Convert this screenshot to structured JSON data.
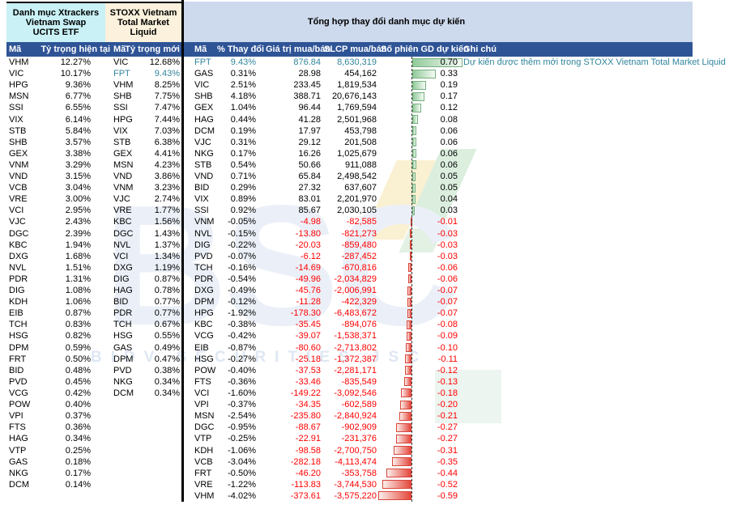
{
  "colors": {
    "header_blue": "#2F5496",
    "etf_header_bg": "#C9F1F6",
    "stoxx_header_bg": "#FBF1DC",
    "changes_header_bg": "#CDD9EC",
    "accent_teal": "#31859C",
    "negative_red": "#FF0000",
    "bar_green": "#92CB9A",
    "bar_red": "#E4473C"
  },
  "watermark": {
    "logo": "BSC",
    "subtext": "BIDV SECURITIES JSC"
  },
  "etf": {
    "title": "Danh mục Xtrackers Vietnam Swap UCITS ETF",
    "columns": {
      "code": "Mã",
      "weight": "Tỷ trọng hiện tại"
    },
    "rows": [
      [
        "VHM",
        "12.27%"
      ],
      [
        "VIC",
        "10.17%"
      ],
      [
        "HPG",
        "9.36%"
      ],
      [
        "MSN",
        "6.77%"
      ],
      [
        "SSI",
        "6.55%"
      ],
      [
        "VIX",
        "6.14%"
      ],
      [
        "STB",
        "5.84%"
      ],
      [
        "SHB",
        "3.57%"
      ],
      [
        "GEX",
        "3.38%"
      ],
      [
        "VNM",
        "3.29%"
      ],
      [
        "VND",
        "3.15%"
      ],
      [
        "VCB",
        "3.04%"
      ],
      [
        "VRE",
        "3.00%"
      ],
      [
        "VCI",
        "2.95%"
      ],
      [
        "VJC",
        "2.43%"
      ],
      [
        "DGC",
        "2.39%"
      ],
      [
        "KBC",
        "1.94%"
      ],
      [
        "DXG",
        "1.68%"
      ],
      [
        "NVL",
        "1.51%"
      ],
      [
        "PDR",
        "1.31%"
      ],
      [
        "DIG",
        "1.08%"
      ],
      [
        "KDH",
        "1.06%"
      ],
      [
        "EIB",
        "0.87%"
      ],
      [
        "TCH",
        "0.83%"
      ],
      [
        "HSG",
        "0.82%"
      ],
      [
        "DPM",
        "0.59%"
      ],
      [
        "FRT",
        "0.50%"
      ],
      [
        "BID",
        "0.48%"
      ],
      [
        "PVD",
        "0.45%"
      ],
      [
        "VCG",
        "0.42%"
      ],
      [
        "POW",
        "0.40%"
      ],
      [
        "VPI",
        "0.37%"
      ],
      [
        "FTS",
        "0.36%"
      ],
      [
        "HAG",
        "0.34%"
      ],
      [
        "VTP",
        "0.25%"
      ],
      [
        "GAS",
        "0.18%"
      ],
      [
        "NKG",
        "0.17%"
      ],
      [
        "DCM",
        "0.14%"
      ]
    ]
  },
  "stoxx": {
    "title": "STOXX Vietnam Total Market Liquid",
    "columns": {
      "code": "Mã",
      "weight": "Tỷ trọng mới"
    },
    "highlight_code": "FPT",
    "rows": [
      [
        "VIC",
        "12.68%"
      ],
      [
        "FPT",
        "9.43%"
      ],
      [
        "VHM",
        "8.25%"
      ],
      [
        "SHB",
        "7.75%"
      ],
      [
        "SSI",
        "7.47%"
      ],
      [
        "HPG",
        "7.44%"
      ],
      [
        "VIX",
        "7.03%"
      ],
      [
        "STB",
        "6.38%"
      ],
      [
        "GEX",
        "4.41%"
      ],
      [
        "MSN",
        "4.23%"
      ],
      [
        "VND",
        "3.86%"
      ],
      [
        "VNM",
        "3.23%"
      ],
      [
        "VJC",
        "2.74%"
      ],
      [
        "VRE",
        "1.77%"
      ],
      [
        "KBC",
        "1.56%"
      ],
      [
        "DGC",
        "1.43%"
      ],
      [
        "NVL",
        "1.37%"
      ],
      [
        "VCI",
        "1.34%"
      ],
      [
        "DXG",
        "1.19%"
      ],
      [
        "DIG",
        "0.87%"
      ],
      [
        "HAG",
        "0.78%"
      ],
      [
        "BID",
        "0.77%"
      ],
      [
        "PDR",
        "0.77%"
      ],
      [
        "TCH",
        "0.67%"
      ],
      [
        "HSG",
        "0.55%"
      ],
      [
        "GAS",
        "0.49%"
      ],
      [
        "DPM",
        "0.47%"
      ],
      [
        "PVD",
        "0.38%"
      ],
      [
        "NKG",
        "0.34%"
      ],
      [
        "DCM",
        "0.34%"
      ]
    ]
  },
  "changes": {
    "title": "Tổng hợp thay đổi danh mục dự kiến",
    "columns": {
      "code": "Mã",
      "pct": "% Thay đổi",
      "value": "Giá trị mua/bán",
      "shares": "SLCP mua/bán",
      "sessions": "Số phiên GD dự kiến",
      "note": "Ghi chú"
    },
    "bar_max_positive": 0.7,
    "bar_max_negative": 0.59,
    "rows": [
      {
        "code": "FPT",
        "pct": "9.43%",
        "value": "876.84",
        "shares": "8,630,319",
        "sessions": "0.70",
        "highlight": true,
        "note": "Dự kiến được thêm mới trong STOXX Vietnam Total Market Liquid"
      },
      {
        "code": "GAS",
        "pct": "0.31%",
        "value": "28.98",
        "shares": "454,162",
        "sessions": "0.33"
      },
      {
        "code": "VIC",
        "pct": "2.51%",
        "value": "233.45",
        "shares": "1,819,534",
        "sessions": "0.19"
      },
      {
        "code": "SHB",
        "pct": "4.18%",
        "value": "388.71",
        "shares": "20,676,143",
        "sessions": "0.17"
      },
      {
        "code": "GEX",
        "pct": "1.04%",
        "value": "96.44",
        "shares": "1,769,594",
        "sessions": "0.12"
      },
      {
        "code": "HAG",
        "pct": "0.44%",
        "value": "41.28",
        "shares": "2,501,968",
        "sessions": "0.08"
      },
      {
        "code": "DCM",
        "pct": "0.19%",
        "value": "17.97",
        "shares": "453,798",
        "sessions": "0.06"
      },
      {
        "code": "VJC",
        "pct": "0.31%",
        "value": "29.12",
        "shares": "201,508",
        "sessions": "0.06"
      },
      {
        "code": "NKG",
        "pct": "0.17%",
        "value": "16.26",
        "shares": "1,025,679",
        "sessions": "0.06"
      },
      {
        "code": "STB",
        "pct": "0.54%",
        "value": "50.66",
        "shares": "911,088",
        "sessions": "0.06"
      },
      {
        "code": "VND",
        "pct": "0.71%",
        "value": "65.84",
        "shares": "2,498,542",
        "sessions": "0.05"
      },
      {
        "code": "BID",
        "pct": "0.29%",
        "value": "27.32",
        "shares": "637,607",
        "sessions": "0.05"
      },
      {
        "code": "VIX",
        "pct": "0.89%",
        "value": "83.01",
        "shares": "2,201,970",
        "sessions": "0.04"
      },
      {
        "code": "SSI",
        "pct": "0.92%",
        "value": "85.67",
        "shares": "2,030,105",
        "sessions": "0.03"
      },
      {
        "code": "VNM",
        "pct": "-0.05%",
        "value": "-4.98",
        "shares": "-82,585",
        "sessions": "-0.01"
      },
      {
        "code": "NVL",
        "pct": "-0.15%",
        "value": "-13.80",
        "shares": "-821,273",
        "sessions": "-0.03"
      },
      {
        "code": "DIG",
        "pct": "-0.22%",
        "value": "-20.03",
        "shares": "-859,480",
        "sessions": "-0.03"
      },
      {
        "code": "PVD",
        "pct": "-0.07%",
        "value": "-6.12",
        "shares": "-287,452",
        "sessions": "-0.03"
      },
      {
        "code": "TCH",
        "pct": "-0.16%",
        "value": "-14.69",
        "shares": "-670,816",
        "sessions": "-0.06"
      },
      {
        "code": "PDR",
        "pct": "-0.54%",
        "value": "-49.96",
        "shares": "-2,034,829",
        "sessions": "-0.06"
      },
      {
        "code": "DXG",
        "pct": "-0.49%",
        "value": "-45.76",
        "shares": "-2,006,991",
        "sessions": "-0.07"
      },
      {
        "code": "DPM",
        "pct": "-0.12%",
        "value": "-11.28",
        "shares": "-422,329",
        "sessions": "-0.07"
      },
      {
        "code": "HPG",
        "pct": "-1.92%",
        "value": "-178.30",
        "shares": "-6,483,672",
        "sessions": "-0.07"
      },
      {
        "code": "KBC",
        "pct": "-0.38%",
        "value": "-35.45",
        "shares": "-894,076",
        "sessions": "-0.08"
      },
      {
        "code": "VCG",
        "pct": "-0.42%",
        "value": "-39.07",
        "shares": "-1,538,371",
        "sessions": "-0.09"
      },
      {
        "code": "EIB",
        "pct": "-0.87%",
        "value": "-80.60",
        "shares": "-2,713,802",
        "sessions": "-0.10"
      },
      {
        "code": "HSG",
        "pct": "-0.27%",
        "value": "-25.18",
        "shares": "-1,372,387",
        "sessions": "-0.11"
      },
      {
        "code": "POW",
        "pct": "-0.40%",
        "value": "-37.53",
        "shares": "-2,281,171",
        "sessions": "-0.12"
      },
      {
        "code": "FTS",
        "pct": "-0.36%",
        "value": "-33.46",
        "shares": "-835,549",
        "sessions": "-0.13"
      },
      {
        "code": "VCI",
        "pct": "-1.60%",
        "value": "-149.22",
        "shares": "-3,092,546",
        "sessions": "-0.18"
      },
      {
        "code": "VPI",
        "pct": "-0.37%",
        "value": "-34.35",
        "shares": "-602,589",
        "sessions": "-0.20"
      },
      {
        "code": "MSN",
        "pct": "-2.54%",
        "value": "-235.80",
        "shares": "-2,840,924",
        "sessions": "-0.21"
      },
      {
        "code": "DGC",
        "pct": "-0.95%",
        "value": "-88.67",
        "shares": "-902,909",
        "sessions": "-0.27"
      },
      {
        "code": "VTP",
        "pct": "-0.25%",
        "value": "-22.91",
        "shares": "-231,376",
        "sessions": "-0.27"
      },
      {
        "code": "KDH",
        "pct": "-1.06%",
        "value": "-98.58",
        "shares": "-2,700,750",
        "sessions": "-0.31"
      },
      {
        "code": "VCB",
        "pct": "-3.04%",
        "value": "-282.18",
        "shares": "-4,113,474",
        "sessions": "-0.35"
      },
      {
        "code": "FRT",
        "pct": "-0.50%",
        "value": "-46.20",
        "shares": "-353,758",
        "sessions": "-0.44"
      },
      {
        "code": "VRE",
        "pct": "-1.22%",
        "value": "-113.83",
        "shares": "-3,744,530",
        "sessions": "-0.52"
      },
      {
        "code": "VHM",
        "pct": "-4.02%",
        "value": "-373.61",
        "shares": "-3,575,220",
        "sessions": "-0.59"
      }
    ]
  }
}
